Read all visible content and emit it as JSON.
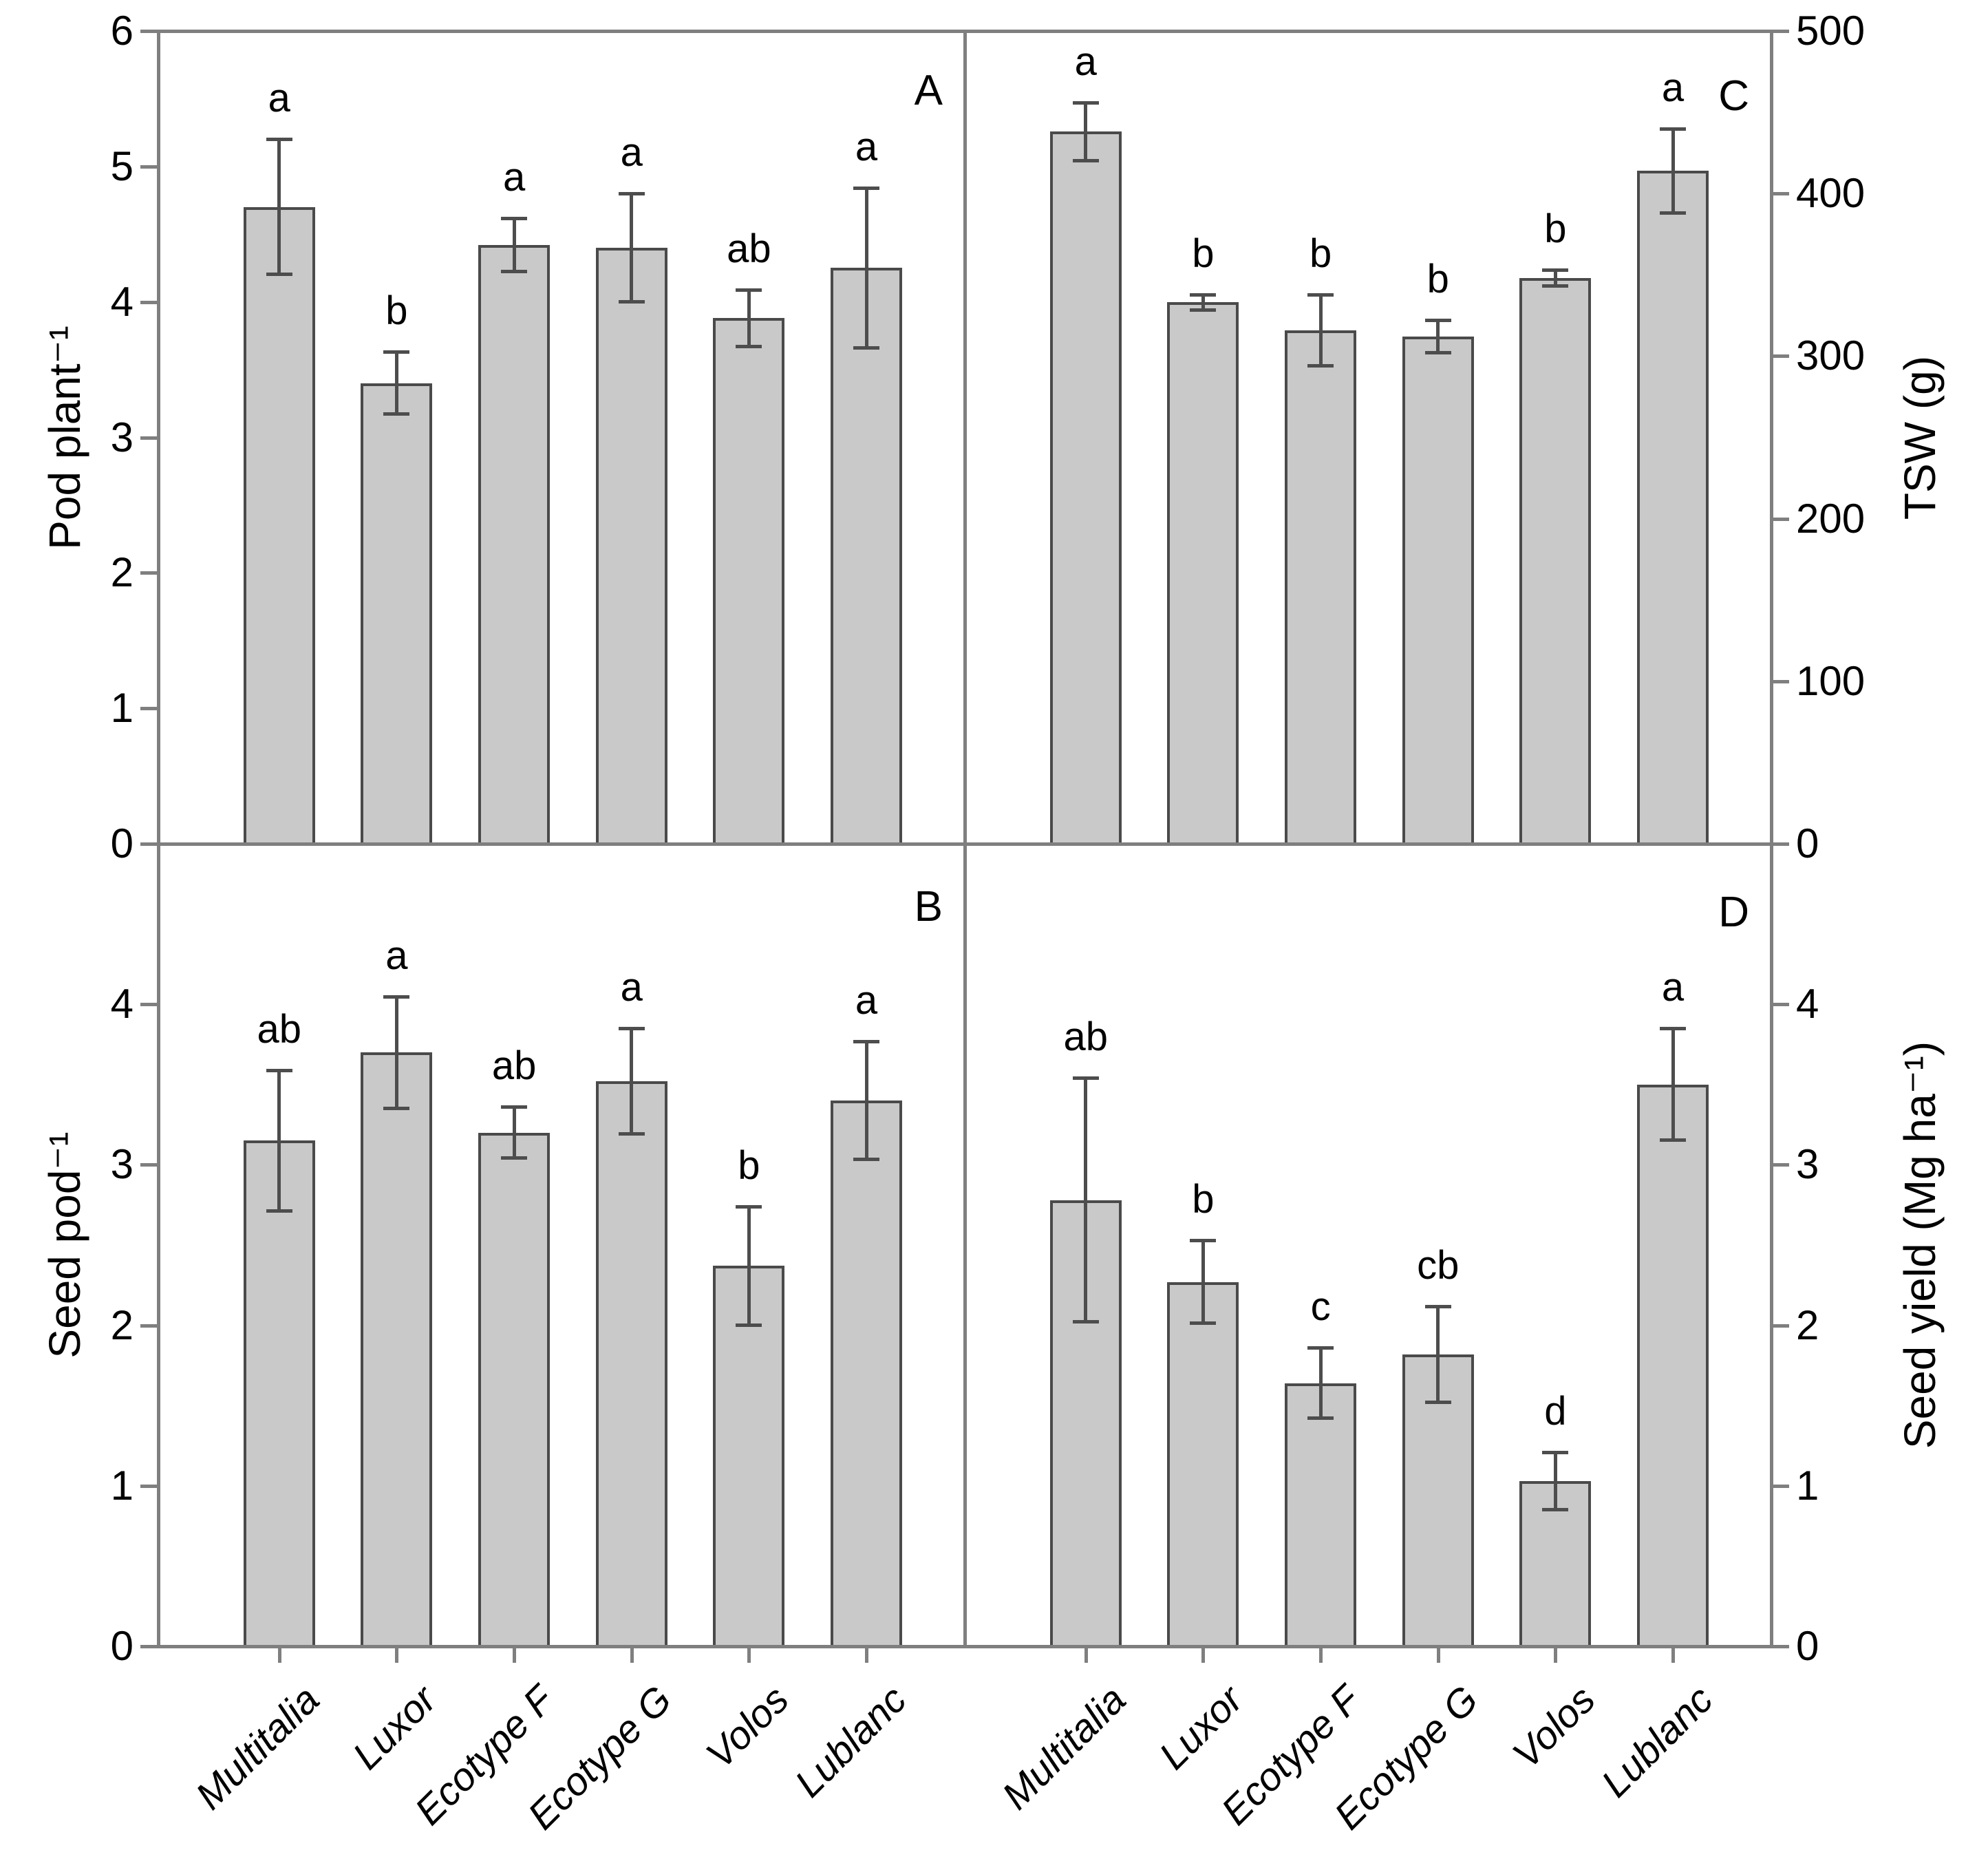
{
  "colors": {
    "background": "#ffffff",
    "bar_fill": "#c9c9c9",
    "bar_border": "#4a4a4a",
    "error_bar": "#4d4d4d",
    "axis_line": "#7f7f7f",
    "text": "#000000"
  },
  "categories": [
    "Multitalia",
    "Luxor",
    "Ecotype F",
    "Ecotype G",
    "Volos",
    "Lublanc"
  ],
  "chart_data": [
    {
      "type": "bar",
      "panel_letter": "A",
      "position": "top-left",
      "ylabel": "Pod plant⁻¹",
      "xlabel": "",
      "yaxis_side": "left",
      "ylim": [
        0,
        6
      ],
      "yticks": [
        0,
        1,
        2,
        3,
        4,
        5,
        6
      ],
      "grid": false,
      "error_bars": true,
      "categories": [
        "Multitalia",
        "Luxor",
        "Ecotype F",
        "Ecotype G",
        "Volos",
        "Lublanc"
      ],
      "values": [
        4.7,
        3.4,
        4.42,
        4.4,
        3.88,
        4.25
      ],
      "errors": [
        0.5,
        0.23,
        0.2,
        0.4,
        0.21,
        0.59
      ],
      "sig_letters": [
        "a",
        "b",
        "a",
        "a",
        "ab",
        "a"
      ]
    },
    {
      "type": "bar",
      "panel_letter": "B",
      "position": "bottom-left",
      "ylabel": "Seed pod⁻¹",
      "xlabel": "",
      "yaxis_side": "left",
      "ylim": [
        0,
        5
      ],
      "yticks": [
        0,
        1,
        2,
        3,
        4
      ],
      "grid": false,
      "error_bars": true,
      "categories": [
        "Multitalia",
        "Luxor",
        "Ecotype F",
        "Ecotype G",
        "Volos",
        "Lublanc"
      ],
      "values": [
        3.15,
        3.7,
        3.2,
        3.52,
        2.37,
        3.4
      ],
      "errors": [
        0.44,
        0.35,
        0.16,
        0.33,
        0.37,
        0.37
      ],
      "sig_letters": [
        "ab",
        "a",
        "ab",
        "a",
        "b",
        "a"
      ]
    },
    {
      "type": "bar",
      "panel_letter": "C",
      "position": "top-right",
      "ylabel": "TSW (g)",
      "xlabel": "",
      "yaxis_side": "right",
      "ylim": [
        0,
        500
      ],
      "yticks": [
        0,
        100,
        200,
        300,
        400,
        500
      ],
      "grid": false,
      "error_bars": true,
      "categories": [
        "Multitalia",
        "Luxor",
        "Ecotype F",
        "Ecotype G",
        "Volos",
        "Lublanc"
      ],
      "values": [
        438,
        333,
        316,
        312,
        348,
        414
      ],
      "errors": [
        18,
        5,
        22,
        10,
        5,
        26
      ],
      "sig_letters": [
        "a",
        "b",
        "b",
        "b",
        "b",
        "a"
      ]
    },
    {
      "type": "bar",
      "panel_letter": "D",
      "position": "bottom-right",
      "ylabel": "Seed yield (Mg ha⁻¹)",
      "xlabel": "",
      "yaxis_side": "right",
      "ylim": [
        0,
        5
      ],
      "yticks": [
        0,
        1,
        2,
        3,
        4
      ],
      "grid": false,
      "error_bars": true,
      "categories": [
        "Multitalia",
        "Luxor",
        "Ecotype F",
        "Ecotype G",
        "Volos",
        "Lublanc"
      ],
      "values": [
        2.78,
        2.27,
        1.64,
        1.82,
        1.03,
        3.5
      ],
      "errors": [
        0.76,
        0.26,
        0.22,
        0.3,
        0.18,
        0.35
      ],
      "sig_letters": [
        "ab",
        "b",
        "c",
        "cb",
        "d",
        "a"
      ]
    }
  ]
}
